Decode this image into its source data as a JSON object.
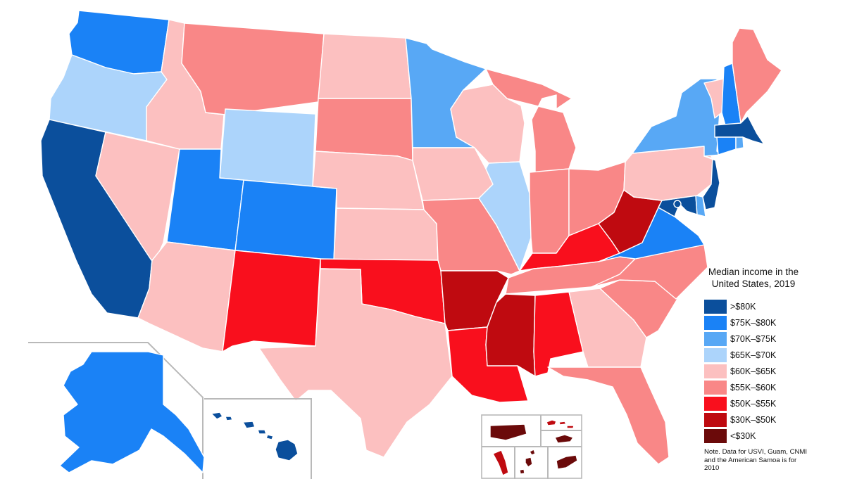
{
  "legend": {
    "title": "Median income in the United States, 2019",
    "items": [
      {
        "label": ">$80K",
        "color": "#0b4f9c"
      },
      {
        "label": "$75K–$80K",
        "color": "#1a82f6"
      },
      {
        "label": "$70K–$75K",
        "color": "#58a8f5"
      },
      {
        "label": "$65K–$70K",
        "color": "#acd4fb"
      },
      {
        "label": "$60K–$65K",
        "color": "#fcc0c0"
      },
      {
        "label": "$55K–$60K",
        "color": "#f98787"
      },
      {
        "label": "$50K–$55K",
        "color": "#f90f1d"
      },
      {
        "label": "$30K–$50K",
        "color": "#bf0a10"
      },
      {
        "label": "<$30K",
        "color": "#6b0a0a"
      }
    ],
    "note": "Note. Data for USVI, Guam, CNMI and the American Samoa is for 2010"
  },
  "states": {
    "WA": {
      "name": "Washington",
      "bracket": 1
    },
    "OR": {
      "name": "Oregon",
      "bracket": 3
    },
    "CA": {
      "name": "California",
      "bracket": 0
    },
    "NV": {
      "name": "Nevada",
      "bracket": 4
    },
    "ID": {
      "name": "Idaho",
      "bracket": 4
    },
    "MT": {
      "name": "Montana",
      "bracket": 5
    },
    "WY": {
      "name": "Wyoming",
      "bracket": 3
    },
    "UT": {
      "name": "Utah",
      "bracket": 1
    },
    "AZ": {
      "name": "Arizona",
      "bracket": 4
    },
    "CO": {
      "name": "Colorado",
      "bracket": 1
    },
    "NM": {
      "name": "New Mexico",
      "bracket": 6
    },
    "ND": {
      "name": "North Dakota",
      "bracket": 4
    },
    "SD": {
      "name": "South Dakota",
      "bracket": 5
    },
    "NE": {
      "name": "Nebraska",
      "bracket": 4
    },
    "KS": {
      "name": "Kansas",
      "bracket": 4
    },
    "OK": {
      "name": "Oklahoma",
      "bracket": 6
    },
    "TX": {
      "name": "Texas",
      "bracket": 4
    },
    "MN": {
      "name": "Minnesota",
      "bracket": 2
    },
    "IA": {
      "name": "Iowa",
      "bracket": 4
    },
    "MO": {
      "name": "Missouri",
      "bracket": 5
    },
    "AR": {
      "name": "Arkansas",
      "bracket": 7
    },
    "LA": {
      "name": "Louisiana",
      "bracket": 6
    },
    "WI": {
      "name": "Wisconsin",
      "bracket": 4
    },
    "IL": {
      "name": "Illinois",
      "bracket": 3
    },
    "MI": {
      "name": "Michigan",
      "bracket": 5
    },
    "IN": {
      "name": "Indiana",
      "bracket": 5
    },
    "OH": {
      "name": "Ohio",
      "bracket": 5
    },
    "KY": {
      "name": "Kentucky",
      "bracket": 6
    },
    "TN": {
      "name": "Tennessee",
      "bracket": 5
    },
    "MS": {
      "name": "Mississippi",
      "bracket": 7
    },
    "AL": {
      "name": "Alabama",
      "bracket": 6
    },
    "GA": {
      "name": "Georgia",
      "bracket": 4
    },
    "FL": {
      "name": "Florida",
      "bracket": 5
    },
    "SC": {
      "name": "South Carolina",
      "bracket": 5
    },
    "NC": {
      "name": "North Carolina",
      "bracket": 5
    },
    "VA": {
      "name": "Virginia",
      "bracket": 1
    },
    "WV": {
      "name": "West Virginia",
      "bracket": 7
    },
    "PA": {
      "name": "Pennsylvania",
      "bracket": 4
    },
    "NY": {
      "name": "New York",
      "bracket": 2
    },
    "VT": {
      "name": "Vermont",
      "bracket": 4
    },
    "NH": {
      "name": "New Hampshire",
      "bracket": 1
    },
    "ME": {
      "name": "Maine",
      "bracket": 5
    },
    "MA": {
      "name": "Massachusetts",
      "bracket": 0
    },
    "RI": {
      "name": "Rhode Island",
      "bracket": 2
    },
    "CT": {
      "name": "Connecticut",
      "bracket": 1
    },
    "NJ": {
      "name": "New Jersey",
      "bracket": 0
    },
    "DE": {
      "name": "Delaware",
      "bracket": 2
    },
    "MD": {
      "name": "Maryland",
      "bracket": 0
    },
    "DC": {
      "name": "District of Columbia",
      "bracket": 0
    },
    "AK": {
      "name": "Alaska",
      "bracket": 1
    },
    "HI": {
      "name": "Hawaii",
      "bracket": 0
    },
    "PR": {
      "name": "Puerto Rico",
      "bracket": 8
    },
    "VI": {
      "name": "U.S. Virgin Islands",
      "bracket": 7
    },
    "AS": {
      "name": "American Samoa",
      "bracket": 8
    },
    "GU": {
      "name": "Guam",
      "bracket": 7
    },
    "MP": {
      "name": "Northern Mariana Islands",
      "bracket": 8
    }
  }
}
